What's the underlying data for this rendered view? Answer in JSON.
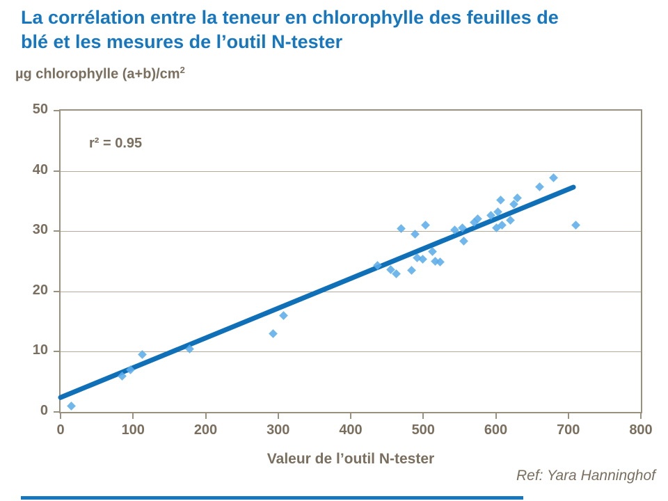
{
  "slide": {
    "title": "La corrélation entre la teneur en chlorophylle des feuilles de blé et les mesures de l’outil N-tester",
    "ref": "Ref: Yara Hanninghof"
  },
  "chart_data": {
    "type": "scatter",
    "title": "La corrélation entre la teneur en chlorophylle des feuilles de blé et les mesures de l’outil N-tester",
    "xlabel": "Valeur de l’outil N-tester",
    "ylabel": "µg chlorophylle (a+b)/cm",
    "ylabel_superscript": "2",
    "annotation": "r² = 0.95",
    "xlim": [
      0,
      800
    ],
    "ylim": [
      0,
      50
    ],
    "x_ticks": [
      0,
      100,
      200,
      300,
      400,
      500,
      600,
      700,
      800
    ],
    "y_ticks": [
      0,
      10,
      20,
      30,
      40,
      50
    ],
    "grid": "horizontal",
    "legend": "none",
    "points": [
      [
        15,
        1
      ],
      [
        85,
        6
      ],
      [
        96,
        7
      ],
      [
        113,
        9.5
      ],
      [
        178,
        10.5
      ],
      [
        293,
        13
      ],
      [
        307,
        16
      ],
      [
        437,
        24.3
      ],
      [
        455,
        23.6
      ],
      [
        463,
        22.9
      ],
      [
        470,
        30.4
      ],
      [
        484,
        23.5
      ],
      [
        489,
        29.5
      ],
      [
        492,
        25.6
      ],
      [
        499,
        25.3
      ],
      [
        503,
        31
      ],
      [
        513,
        26.6
      ],
      [
        517,
        25
      ],
      [
        523,
        24.9
      ],
      [
        543,
        30.2
      ],
      [
        554,
        30.6
      ],
      [
        556,
        28.4
      ],
      [
        570,
        31.5
      ],
      [
        575,
        32.1
      ],
      [
        593,
        32.6
      ],
      [
        601,
        30.6
      ],
      [
        603,
        33.2
      ],
      [
        607,
        35.2
      ],
      [
        609,
        31
      ],
      [
        620,
        31.8
      ],
      [
        625,
        34.5
      ],
      [
        630,
        35.5
      ],
      [
        660,
        37.4
      ],
      [
        680,
        38.9
      ],
      [
        710,
        31
      ]
    ],
    "trendline": {
      "start": [
        0,
        2.4
      ],
      "end": [
        707,
        37.3
      ]
    },
    "colors": {
      "title": "#1777BE",
      "marker": "#5CADEA",
      "trend": "#0F6FB7",
      "axis_text": "#7A6F5E",
      "axis_line": "#99907E",
      "grid_line": "#B3AA99",
      "footer_bar": "#1777BE"
    }
  }
}
